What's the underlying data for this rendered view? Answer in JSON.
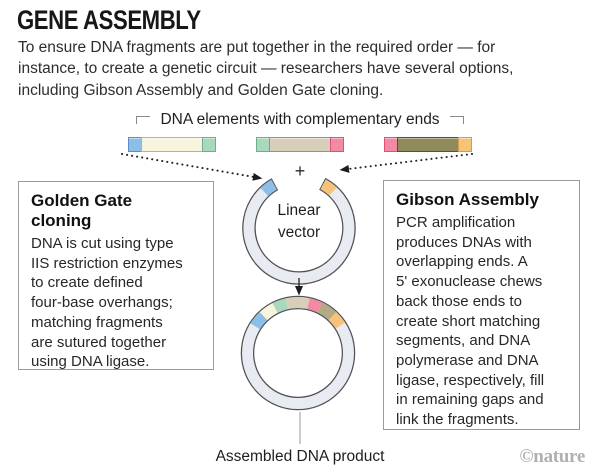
{
  "header": {
    "title": "GENE ASSEMBLY",
    "intro": "To ensure DNA fragments are put together in the required order — for\ninstance, to create a genetic circuit — researchers have several options,\nincluding Gibson Assembly and Golden Gate cloning."
  },
  "diagram": {
    "elements_label": "DNA elements with complementary ends",
    "plus": "+",
    "linear_vector_label": "Linear\nvector",
    "assembled_label": "Assembled DNA product",
    "colors": {
      "blue": {
        "fill": "#8cbfe8",
        "edge": "#5f8fc0"
      },
      "green": {
        "fill": "#a8d8bd",
        "edge": "#6fae8e"
      },
      "pink": {
        "fill": "#f489a4",
        "edge": "#d9537d"
      },
      "orange": {
        "fill": "#f7c379",
        "edge": "#d99a49"
      },
      "cream": {
        "fill": "#f7f3dc",
        "edge": "#b9b193"
      },
      "tan": {
        "fill": "#d7cfba",
        "edge": "#99917a"
      },
      "olive": {
        "fill": "#8f8b5c",
        "edge": "#55522f"
      },
      "olive_light": {
        "fill": "#b3ab84",
        "edge": "#8a8360"
      },
      "ring": {
        "fill": "#e8ebf1",
        "edge": "#505257"
      }
    },
    "fragments": [
      {
        "name": "1",
        "left_end": "blue",
        "body": "cream",
        "right_end": "green"
      },
      {
        "name": "2",
        "left_end": "green",
        "body": "tan",
        "right_end": "pink"
      },
      {
        "name": "3",
        "left_end": "pink",
        "body": "olive",
        "right_end": "orange"
      }
    ],
    "vector": {
      "arc": [
        -61,
        240
      ],
      "caps": [
        {
          "color": "blue",
          "from": 226,
          "to": 240
        },
        {
          "color": "orange",
          "from": -61,
          "to": -47
        }
      ]
    },
    "assembled_segments": [
      {
        "color": "blue",
        "from": -148,
        "to": -133
      },
      {
        "color": "cream",
        "from": -133,
        "to": -117
      },
      {
        "color": "green",
        "from": -117,
        "to": -103
      },
      {
        "color": "tan",
        "from": -103,
        "to": -78
      },
      {
        "color": "pink",
        "from": -78,
        "to": -64
      },
      {
        "color": "olive_light",
        "from": -64,
        "to": -47
      },
      {
        "color": "orange",
        "from": -47,
        "to": -33
      }
    ]
  },
  "boxes": {
    "golden_gate": {
      "title": "Golden Gate\ncloning",
      "body": "DNA is cut using type\nIIS restriction enzymes\nto create defined\nfour-base overhangs;\nmatching fragments\nare sutured together\nusing DNA ligase."
    },
    "gibson": {
      "title": "Gibson Assembly",
      "body": "PCR amplification\nproduces DNAs with\noverlapping ends. A\n5' exonuclease chews\nback those ends to\ncreate short matching\nsegments, and DNA\npolymerase and DNA\nligase, respectively, fill\nin remaining gaps and\nlink the fragments."
    }
  },
  "credit": "©nature"
}
